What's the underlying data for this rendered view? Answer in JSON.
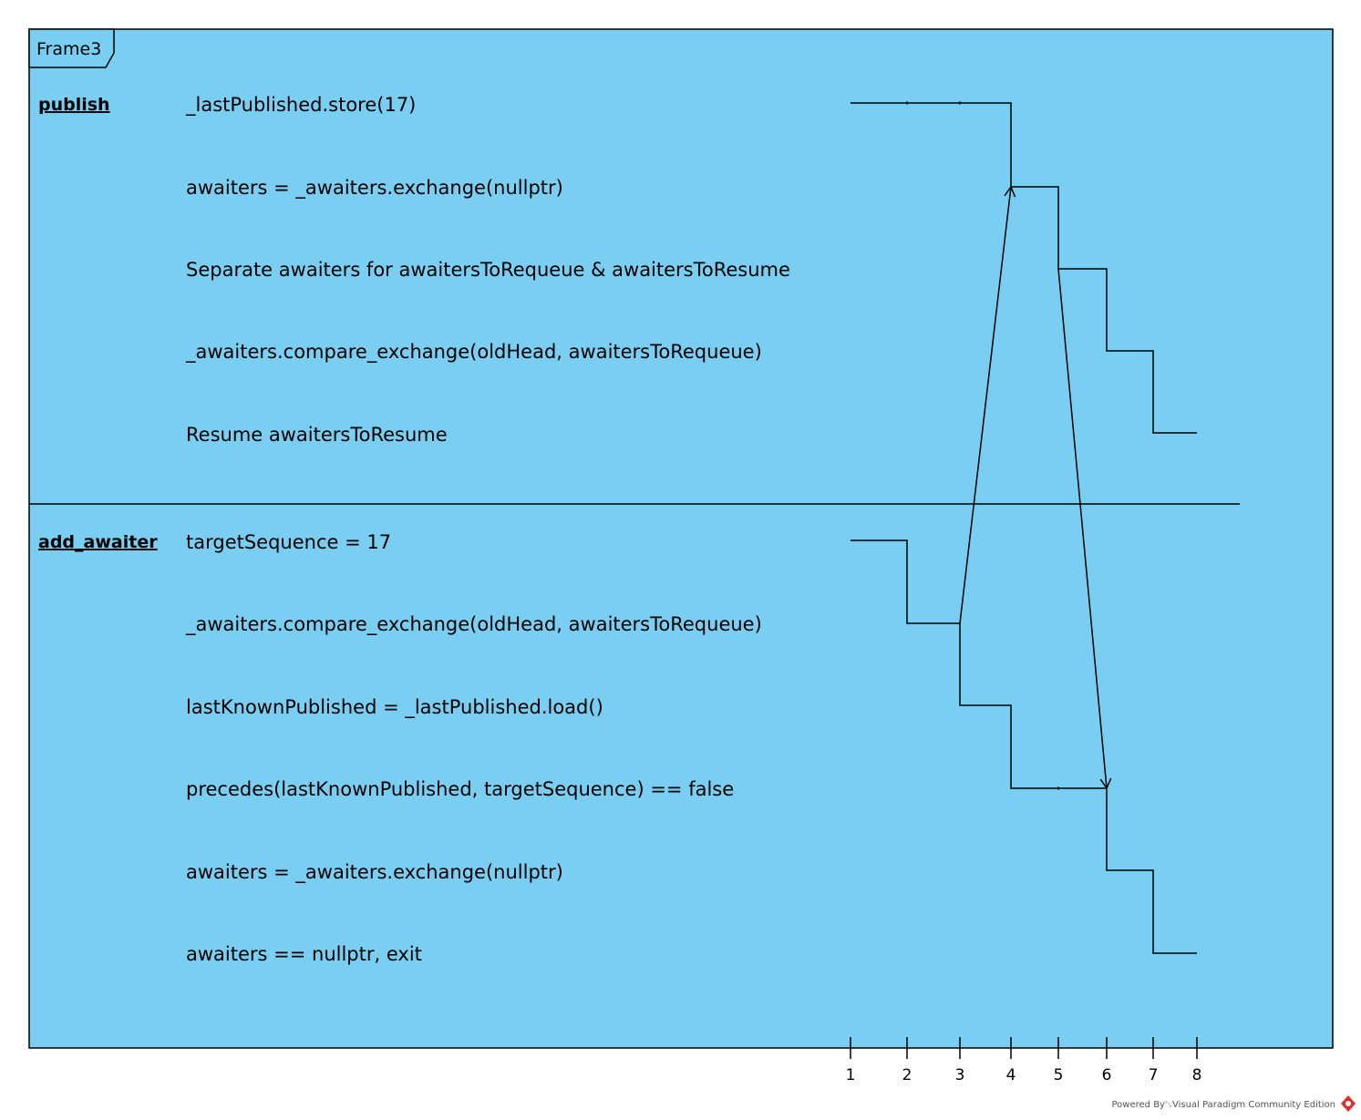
{
  "frame": {
    "title": "Frame3",
    "fill": "#7ACEF2"
  },
  "lifelines": [
    {
      "name": "publish",
      "states": [
        "_lastPublished.store(17)",
        "awaiters = _awaiters.exchange(nullptr)",
        "Separate awaiters for awaitersToRequeue & awaitersToResume",
        "_awaiters.compare_exchange(oldHead, awaitersToRequeue)",
        "Resume awaitersToResume"
      ],
      "timeline": [
        {
          "from": 1,
          "to": 4,
          "state": 0
        },
        {
          "from": 4,
          "to": 5,
          "state": 1
        },
        {
          "from": 5,
          "to": 6,
          "state": 2
        },
        {
          "from": 6,
          "to": 7,
          "state": 3
        },
        {
          "from": 7,
          "to": 8,
          "state": 4
        }
      ]
    },
    {
      "name": "add_awaiter",
      "states": [
        "targetSequence = 17",
        "_awaiters.compare_exchange(oldHead, awaitersToRequeue)",
        "lastKnownPublished = _lastPublished.load()",
        "precedes(lastKnownPublished, targetSequence) == false",
        "awaiters = _awaiters.exchange(nullptr)",
        "awaiters == nullptr, exit"
      ],
      "timeline": [
        {
          "from": 1,
          "to": 2,
          "state": 0
        },
        {
          "from": 2,
          "to": 3,
          "state": 1
        },
        {
          "from": 3,
          "to": 4,
          "state": 2
        },
        {
          "from": 4,
          "to": 6,
          "state": 3
        },
        {
          "from": 6,
          "to": 7,
          "state": 4
        },
        {
          "from": 7,
          "to": 8,
          "state": 5
        }
      ]
    }
  ],
  "messages": [
    {
      "from_lifeline": 1,
      "from_state": 1,
      "time_from": 3,
      "to_lifeline": 0,
      "to_state": 1,
      "time_to": 4
    },
    {
      "from_lifeline": 0,
      "from_state": 2,
      "time_from": 5,
      "to_lifeline": 1,
      "to_state": 3,
      "time_to": 6
    }
  ],
  "time_ticks": [
    "1",
    "2",
    "3",
    "4",
    "5",
    "6",
    "7",
    "8"
  ],
  "footer": "Powered By␂Visual Paradigm Community Edition"
}
